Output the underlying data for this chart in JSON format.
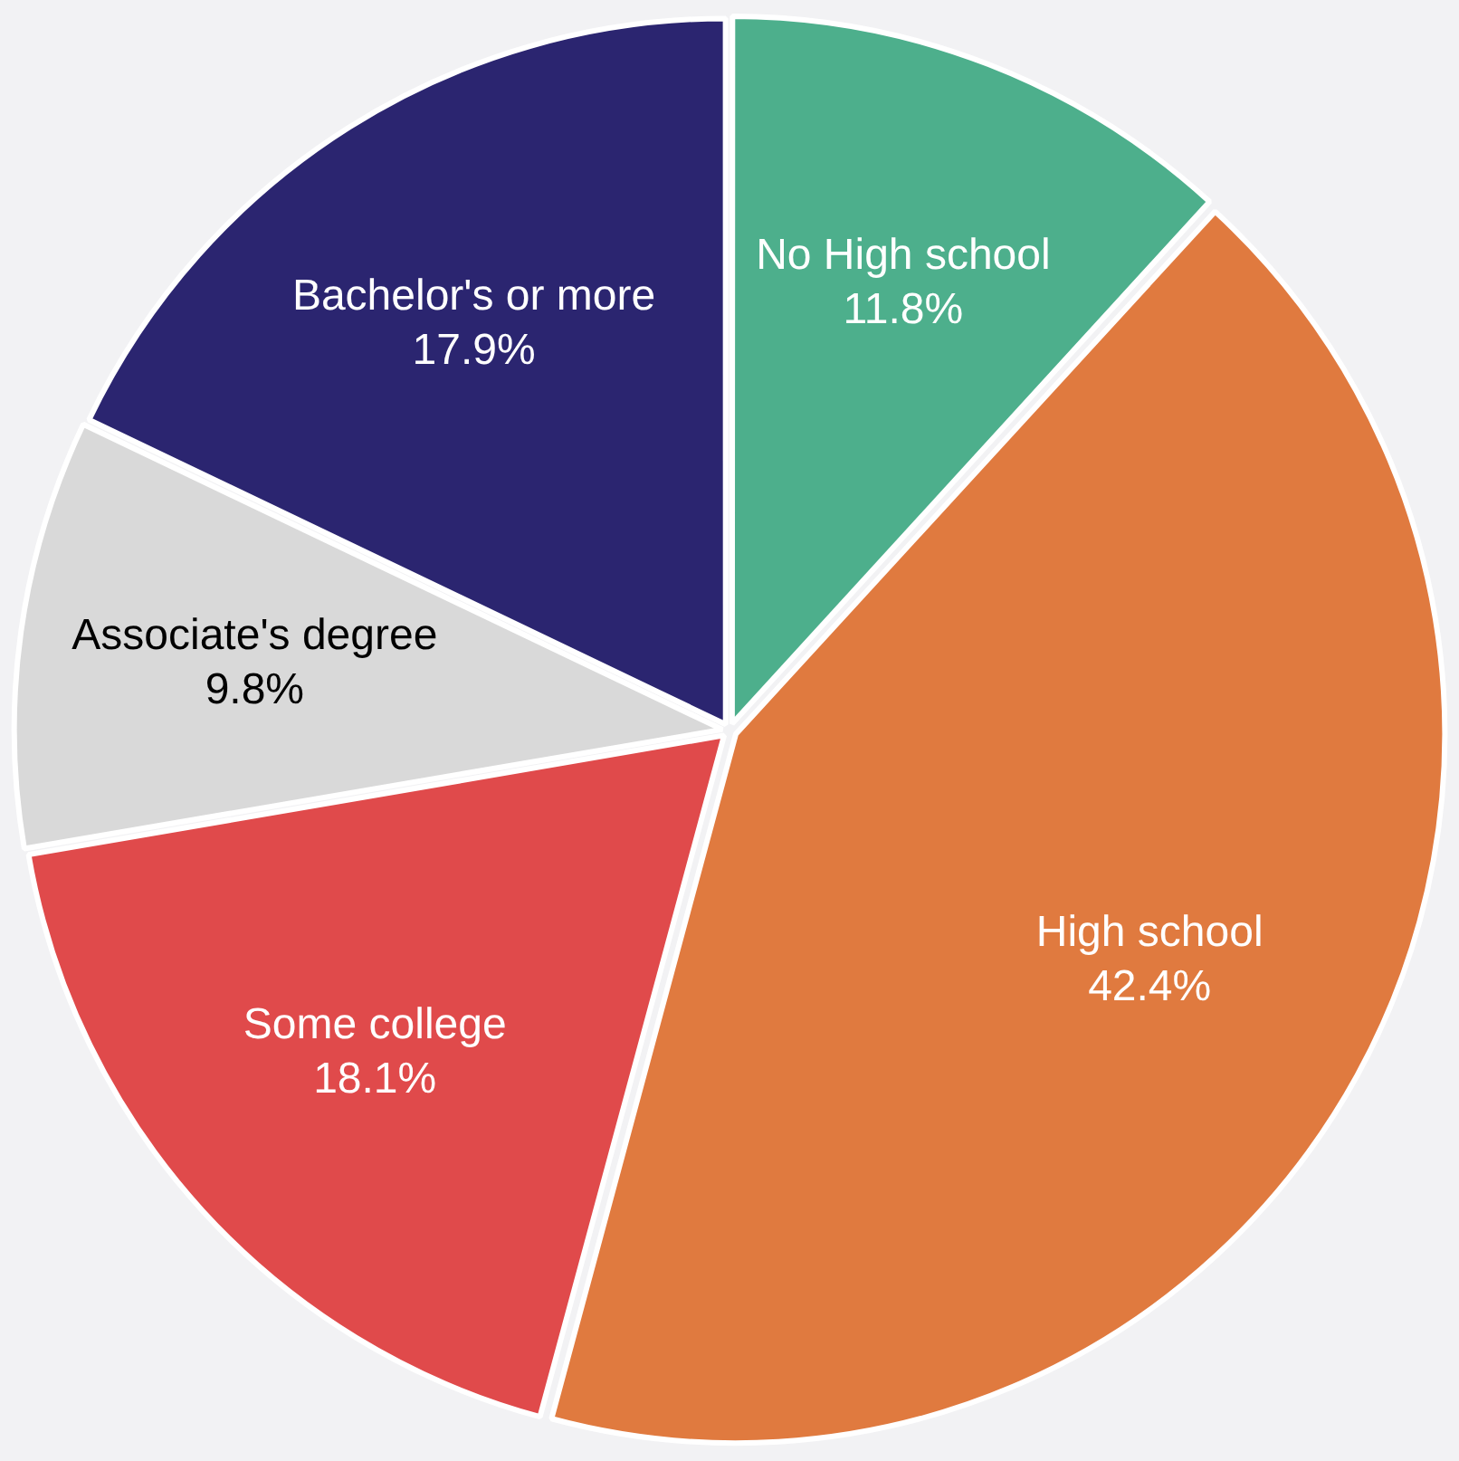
{
  "chart_data": {
    "type": "pie",
    "categories": [
      "No High school",
      "High school",
      "Some college",
      "Associate's degree",
      "Bachelor's or more"
    ],
    "values": [
      11.8,
      42.4,
      18.1,
      9.8,
      17.9
    ],
    "value_labels": [
      "11.8%",
      "42.4%",
      "18.1%",
      "9.8%",
      "17.9%"
    ],
    "colors": [
      "#4daf8c",
      "#e07a3f",
      "#e04a4b",
      "#d9d9d9",
      "#2b2570"
    ],
    "legend": false
  }
}
